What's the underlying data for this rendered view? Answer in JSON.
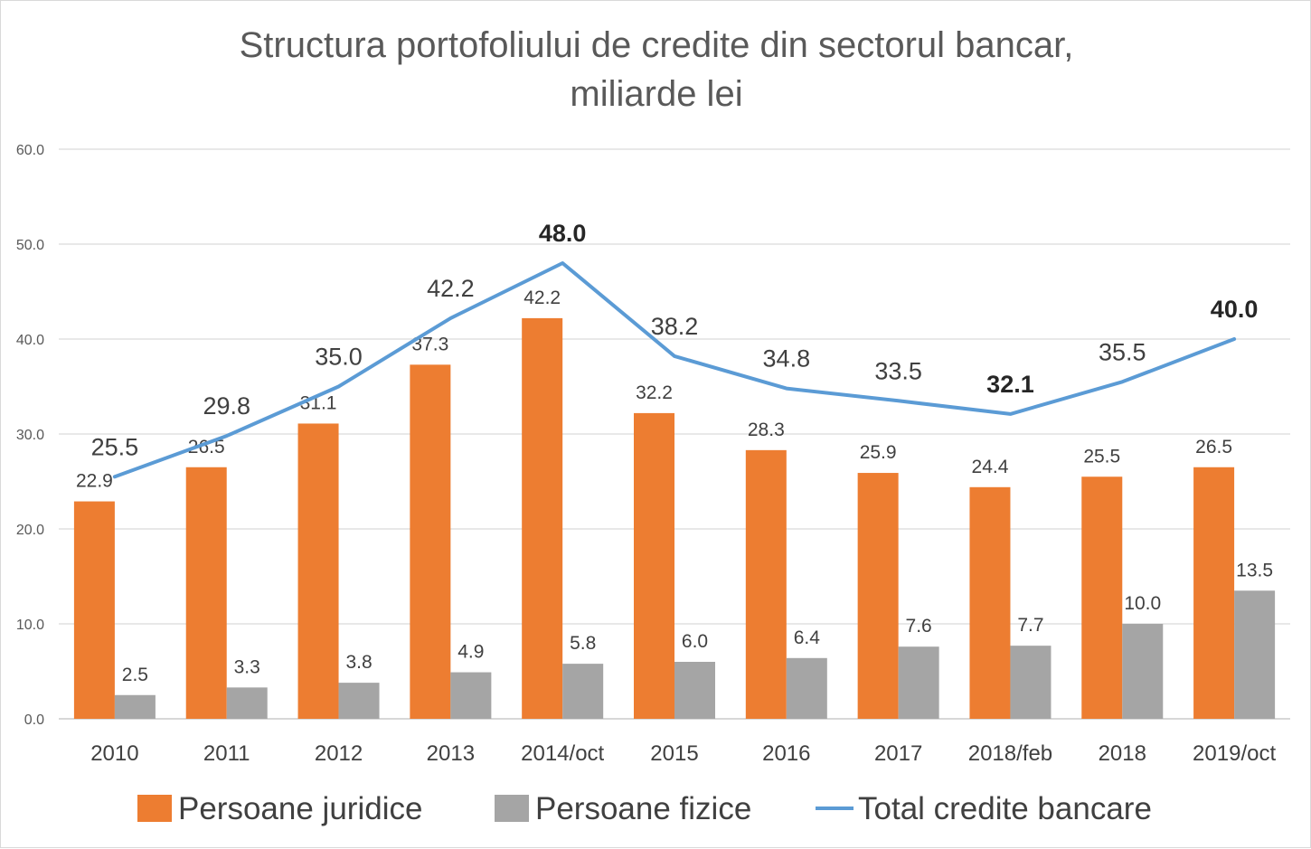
{
  "chart_data": {
    "type": "bar",
    "title_lines": [
      "Structura portofoliului de credite din sectorul bancar,",
      "miliarde lei"
    ],
    "categories": [
      "2010",
      "2011",
      "2012",
      "2013",
      "2014/oct",
      "2015",
      "2016",
      "2017",
      "2018/feb",
      "2018",
      "2019/oct"
    ],
    "series": [
      {
        "name": "Persoane juridice",
        "type": "bar",
        "color": "#ED7D31",
        "values": [
          22.9,
          26.5,
          31.1,
          37.3,
          42.2,
          32.2,
          28.3,
          25.9,
          24.4,
          25.5,
          26.5
        ],
        "labels": [
          "22.9",
          "26.5",
          "31.1",
          "37.3",
          "42.2",
          "32.2",
          "28.3",
          "25.9",
          "24.4",
          "25.5",
          "26.5"
        ]
      },
      {
        "name": "Persoane fizice",
        "type": "bar",
        "color": "#A5A5A5",
        "values": [
          2.5,
          3.3,
          3.8,
          4.9,
          5.8,
          6.0,
          6.4,
          7.6,
          7.7,
          10.0,
          13.5
        ],
        "labels": [
          "2.5",
          "3.3",
          "3.8",
          "4.9",
          "5.8",
          "6.0",
          "6.4",
          "7.6",
          "7.7",
          "10.0",
          "13.5"
        ]
      },
      {
        "name": "Total credite bancare",
        "type": "line",
        "color": "#5B9BD5",
        "values": [
          25.5,
          29.8,
          35.0,
          42.2,
          48.0,
          38.2,
          34.8,
          33.5,
          32.1,
          35.5,
          40.0
        ],
        "labels": [
          "25.5",
          "29.8",
          "35.0",
          "42.2",
          "48.0",
          "38.2",
          "34.8",
          "33.5",
          "32.1",
          "35.5",
          "40.0"
        ],
        "bold_labels": [
          "2014/oct",
          "2018/feb",
          "2019/oct"
        ]
      }
    ],
    "y_ticks": [
      "0.0",
      "10.0",
      "20.0",
      "30.0",
      "40.0",
      "50.0",
      "60.0"
    ],
    "ylim": [
      0,
      60
    ],
    "grid": true,
    "legend_position": "bottom"
  }
}
